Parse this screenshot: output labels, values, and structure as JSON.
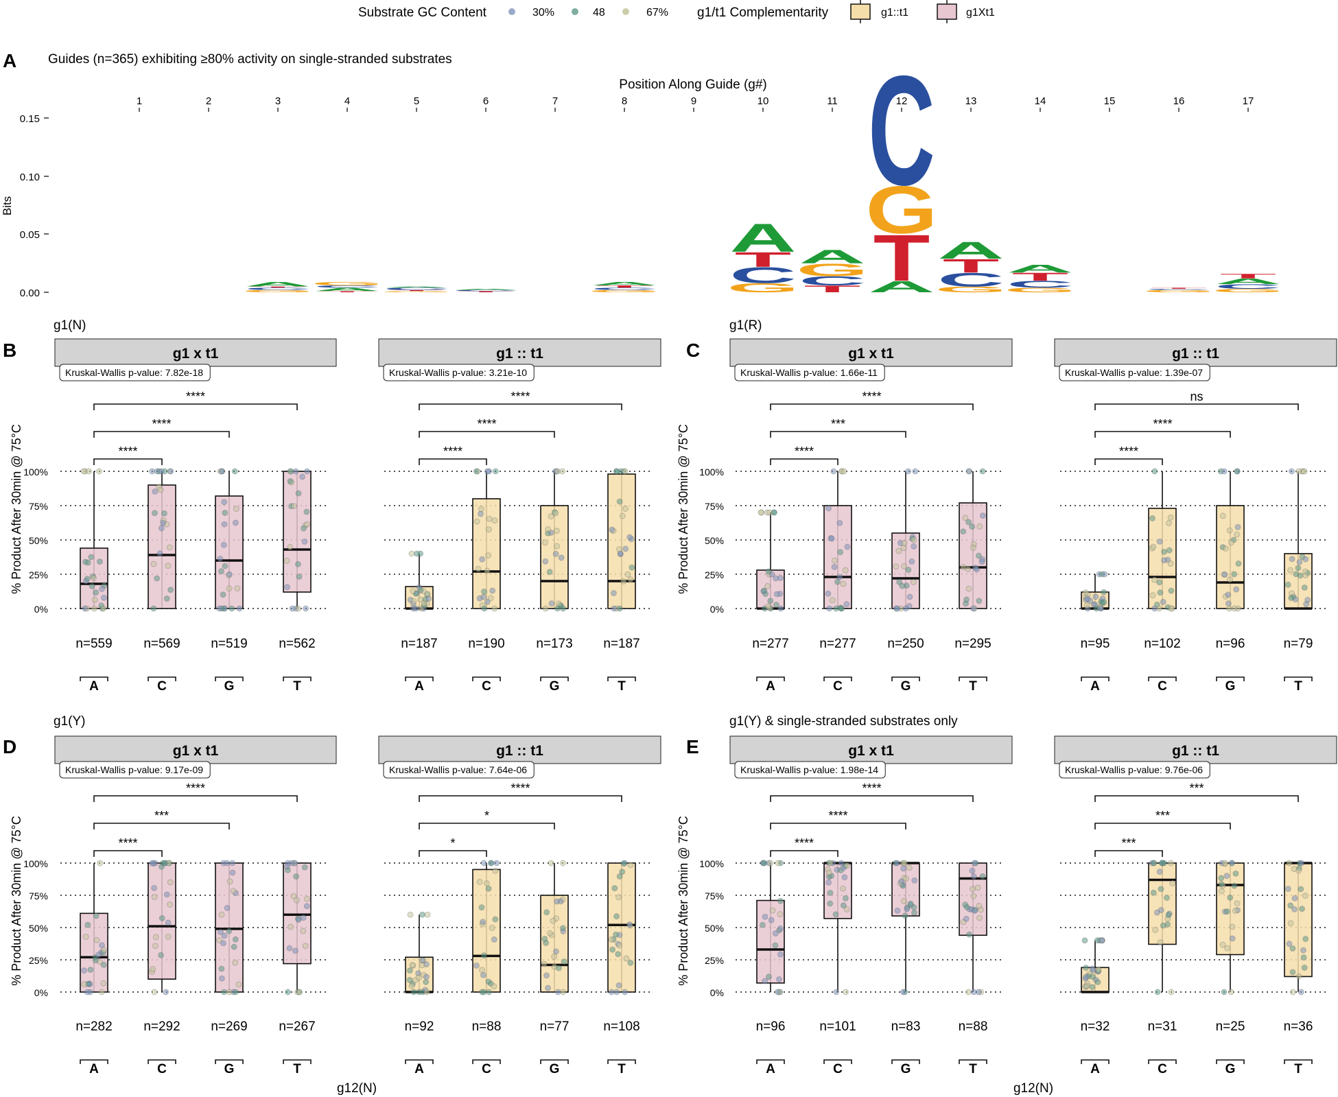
{
  "legend": {
    "gc_title": "Substrate GC Content",
    "gc_items": [
      {
        "label": "30%",
        "color": "#7f95bb"
      },
      {
        "label": "48",
        "color": "#5f9a8a"
      },
      {
        "label": "67%",
        "color": "#c7c79e"
      }
    ],
    "comp_title": "g1/t1 Complementarity",
    "comp_items": [
      {
        "label": "g1::t1",
        "fill": "#f6deab"
      },
      {
        "label": "g1Xt1",
        "fill": "#e8c7d0"
      }
    ]
  },
  "colors": {
    "A": "#1e9a37",
    "C": "#2a4f9e",
    "G": "#f2a31b",
    "T": "#d0202e",
    "mismatch_fill": "#e8c7d0",
    "match_fill": "#f6deab",
    "strip_fill": "#d3d3d3",
    "gc_low": "#7f95bb",
    "gc_mid": "#5f9a8a",
    "gc_high": "#c7c79e"
  },
  "panel_A": {
    "label": "A",
    "title": "Guides (n=365) exhibiting ≥80% activity on single-stranded substrates",
    "x_title": "Position Along Guide (g#)",
    "y_title": "Bits",
    "y_ticks": [
      "0.15",
      "0.10",
      "0.05",
      "0.00"
    ]
  },
  "subplot_labels": {
    "B": "B",
    "C": "C",
    "D": "D",
    "E": "E",
    "g1N": "g1(N)",
    "g1R": "g1(R)",
    "g1Y": "g1(Y)",
    "g1Y_ss": "g1(Y) & single-stranded substrates only"
  },
  "box_y_title": "% Product After 30min @ 75°C",
  "box_y_ticks": [
    "100%",
    "75%",
    "50%",
    "25%",
    "0%"
  ],
  "box_x_title": "g12(N)",
  "chart_data": [
    {
      "type": "sequence-logo",
      "panel": "A",
      "x_label": "Position Along Guide (g#)",
      "y_label": "Bits",
      "ylim": [
        0,
        0.15
      ],
      "positions": [
        1,
        2,
        3,
        4,
        5,
        6,
        7,
        8,
        9,
        10,
        11,
        12,
        13,
        14,
        15,
        16,
        17
      ],
      "stacks": [
        {
          "pos": 3,
          "letters": [
            [
              "G",
              0.002
            ],
            [
              "C",
              0.002
            ],
            [
              "T",
              0.001
            ],
            [
              "A",
              0.004
            ]
          ]
        },
        {
          "pos": 4,
          "letters": [
            [
              "T",
              0.001
            ],
            [
              "A",
              0.003
            ],
            [
              "C",
              0.002
            ],
            [
              "G",
              0.003
            ]
          ]
        },
        {
          "pos": 5,
          "letters": [
            [
              "G",
              0.001
            ],
            [
              "T",
              0.001
            ],
            [
              "C",
              0.002
            ],
            [
              "A",
              0.001
            ]
          ]
        },
        {
          "pos": 6,
          "letters": [
            [
              "T",
              0.001
            ],
            [
              "C",
              0.001
            ],
            [
              "A",
              0.001
            ]
          ]
        },
        {
          "pos": 8,
          "letters": [
            [
              "G",
              0.002
            ],
            [
              "C",
              0.002
            ],
            [
              "T",
              0.002
            ],
            [
              "A",
              0.003
            ]
          ]
        },
        {
          "pos": 10,
          "letters": [
            [
              "G",
              0.008
            ],
            [
              "C",
              0.014
            ],
            [
              "T",
              0.013
            ],
            [
              "A",
              0.025
            ]
          ]
        },
        {
          "pos": 11,
          "letters": [
            [
              "T",
              0.006
            ],
            [
              "C",
              0.008
            ],
            [
              "G",
              0.011
            ],
            [
              "A",
              0.012
            ]
          ]
        },
        {
          "pos": 12,
          "letters": [
            [
              "A",
              0.01
            ],
            [
              "T",
              0.041
            ],
            [
              "G",
              0.042
            ],
            [
              "C",
              0.097
            ]
          ]
        },
        {
          "pos": 13,
          "letters": [
            [
              "G",
              0.005
            ],
            [
              "C",
              0.012
            ],
            [
              "T",
              0.012
            ],
            [
              "A",
              0.015
            ]
          ]
        },
        {
          "pos": 14,
          "letters": [
            [
              "G",
              0.004
            ],
            [
              "C",
              0.006
            ],
            [
              "T",
              0.007
            ],
            [
              "A",
              0.007
            ]
          ]
        },
        {
          "pos": 16,
          "letters": [
            [
              "G",
              0.002
            ],
            [
              "C",
              0.001
            ],
            [
              "T",
              0.001
            ]
          ]
        },
        {
          "pos": 17,
          "letters": [
            [
              "G",
              0.003
            ],
            [
              "C",
              0.004
            ],
            [
              "A",
              0.005
            ],
            [
              "T",
              0.004
            ]
          ]
        }
      ]
    },
    {
      "type": "box",
      "subplot": "g1(N)",
      "facet": "g1 x t1",
      "complementarity": "g1Xt1",
      "categories": [
        "A",
        "C",
        "G",
        "T"
      ],
      "kruskal_wallis": "Kruskal-Wallis p-value: 7.82e-18",
      "counts": [
        "n=559",
        "n=569",
        "n=519",
        "n=562"
      ],
      "q1": [
        0,
        0,
        0,
        12
      ],
      "median": [
        18,
        39,
        35,
        43
      ],
      "q3": [
        44,
        90,
        82,
        100
      ],
      "whisker_low": [
        0,
        0,
        0,
        0
      ],
      "whisker_high": [
        100,
        100,
        100,
        100
      ],
      "brackets": [
        {
          "from": "A",
          "to": "C",
          "label": "****"
        },
        {
          "from": "A",
          "to": "G",
          "label": "****"
        },
        {
          "from": "A",
          "to": "T",
          "label": "****"
        }
      ]
    },
    {
      "type": "box",
      "subplot": "g1(N)",
      "facet": "g1 :: t1",
      "complementarity": "g1::t1",
      "categories": [
        "A",
        "C",
        "G",
        "T"
      ],
      "kruskal_wallis": "Kruskal-Wallis p-value: 3.21e-10",
      "counts": [
        "n=187",
        "n=190",
        "n=173",
        "n=187"
      ],
      "q1": [
        0,
        0,
        0,
        0
      ],
      "median": [
        0,
        27,
        20,
        20
      ],
      "q3": [
        16,
        80,
        75,
        98
      ],
      "whisker_low": [
        0,
        0,
        0,
        0
      ],
      "whisker_high": [
        40,
        100,
        100,
        100
      ],
      "brackets": [
        {
          "from": "A",
          "to": "C",
          "label": "****"
        },
        {
          "from": "A",
          "to": "G",
          "label": "****"
        },
        {
          "from": "A",
          "to": "T",
          "label": "****"
        }
      ]
    },
    {
      "type": "box",
      "subplot": "g1(R)",
      "facet": "g1 x t1",
      "complementarity": "g1Xt1",
      "categories": [
        "A",
        "C",
        "G",
        "T"
      ],
      "kruskal_wallis": "Kruskal-Wallis p-value: 1.66e-11",
      "counts": [
        "n=277",
        "n=277",
        "n=250",
        "n=295"
      ],
      "q1": [
        0,
        0,
        0,
        0
      ],
      "median": [
        0,
        23,
        22,
        30
      ],
      "q3": [
        28,
        75,
        55,
        77
      ],
      "whisker_low": [
        0,
        0,
        0,
        0
      ],
      "whisker_high": [
        70,
        100,
        100,
        100
      ],
      "brackets": [
        {
          "from": "A",
          "to": "C",
          "label": "****"
        },
        {
          "from": "A",
          "to": "G",
          "label": "***"
        },
        {
          "from": "A",
          "to": "T",
          "label": "****"
        }
      ]
    },
    {
      "type": "box",
      "subplot": "g1(R)",
      "facet": "g1 :: t1",
      "complementarity": "g1::t1",
      "categories": [
        "A",
        "C",
        "G",
        "T"
      ],
      "kruskal_wallis": "Kruskal-Wallis p-value: 1.39e-07",
      "counts": [
        "n=95",
        "n=102",
        "n=96",
        "n=79"
      ],
      "q1": [
        0,
        0,
        0,
        0
      ],
      "median": [
        0,
        23,
        19,
        0
      ],
      "q3": [
        12,
        73,
        75,
        40
      ],
      "whisker_low": [
        0,
        0,
        0,
        0
      ],
      "whisker_high": [
        25,
        100,
        100,
        100
      ],
      "brackets": [
        {
          "from": "A",
          "to": "C",
          "label": "****"
        },
        {
          "from": "A",
          "to": "G",
          "label": "****"
        },
        {
          "from": "A",
          "to": "T",
          "label": "ns"
        }
      ]
    },
    {
      "type": "box",
      "subplot": "g1(Y)",
      "facet": "g1 x t1",
      "complementarity": "g1Xt1",
      "categories": [
        "A",
        "C",
        "G",
        "T"
      ],
      "kruskal_wallis": "Kruskal-Wallis p-value: 9.17e-09",
      "counts": [
        "n=282",
        "n=292",
        "n=269",
        "n=267"
      ],
      "q1": [
        0,
        10,
        0,
        22
      ],
      "median": [
        27,
        51,
        49,
        60
      ],
      "q3": [
        61,
        100,
        100,
        100
      ],
      "whisker_low": [
        0,
        0,
        0,
        0
      ],
      "whisker_high": [
        100,
        100,
        100,
        100
      ],
      "brackets": [
        {
          "from": "A",
          "to": "C",
          "label": "****"
        },
        {
          "from": "A",
          "to": "G",
          "label": "***"
        },
        {
          "from": "A",
          "to": "T",
          "label": "****"
        }
      ]
    },
    {
      "type": "box",
      "subplot": "g1(Y)",
      "facet": "g1 :: t1",
      "complementarity": "g1::t1",
      "categories": [
        "A",
        "C",
        "G",
        "T"
      ],
      "kruskal_wallis": "Kruskal-Wallis p-value: 7.64e-06",
      "counts": [
        "n=92",
        "n=88",
        "n=77",
        "n=108"
      ],
      "q1": [
        0,
        0,
        0,
        0
      ],
      "median": [
        0,
        28,
        21,
        52
      ],
      "q3": [
        27,
        95,
        75,
        100
      ],
      "whisker_low": [
        0,
        0,
        0,
        0
      ],
      "whisker_high": [
        60,
        100,
        100,
        100
      ],
      "brackets": [
        {
          "from": "A",
          "to": "C",
          "label": "*"
        },
        {
          "from": "A",
          "to": "G",
          "label": "*"
        },
        {
          "from": "A",
          "to": "T",
          "label": "****"
        }
      ]
    },
    {
      "type": "box",
      "subplot": "g1(Y) & single-stranded substrates only",
      "facet": "g1 x t1",
      "complementarity": "g1Xt1",
      "categories": [
        "A",
        "C",
        "G",
        "T"
      ],
      "kruskal_wallis": "Kruskal-Wallis p-value: 1.98e-14",
      "counts": [
        "n=96",
        "n=101",
        "n=83",
        "n=88"
      ],
      "q1": [
        7,
        57,
        59,
        44
      ],
      "median": [
        33,
        100,
        100,
        88
      ],
      "q3": [
        71,
        100,
        100,
        100
      ],
      "whisker_low": [
        0,
        0,
        0,
        0
      ],
      "whisker_high": [
        100,
        100,
        100,
        100
      ],
      "brackets": [
        {
          "from": "A",
          "to": "C",
          "label": "****"
        },
        {
          "from": "A",
          "to": "G",
          "label": "****"
        },
        {
          "from": "A",
          "to": "T",
          "label": "****"
        }
      ]
    },
    {
      "type": "box",
      "subplot": "g1(Y) & single-stranded substrates only",
      "facet": "g1 :: t1",
      "complementarity": "g1::t1",
      "categories": [
        "A",
        "C",
        "G",
        "T"
      ],
      "kruskal_wallis": "Kruskal-Wallis p-value: 9.76e-06",
      "counts": [
        "n=32",
        "n=31",
        "n=25",
        "n=36"
      ],
      "q1": [
        0,
        37,
        29,
        12
      ],
      "median": [
        0,
        87,
        83,
        100
      ],
      "q3": [
        19,
        100,
        100,
        100
      ],
      "whisker_low": [
        0,
        0,
        0,
        0
      ],
      "whisker_high": [
        40,
        100,
        100,
        100
      ],
      "brackets": [
        {
          "from": "A",
          "to": "C",
          "label": "***"
        },
        {
          "from": "A",
          "to": "G",
          "label": "***"
        },
        {
          "from": "A",
          "to": "T",
          "label": "***"
        }
      ]
    }
  ]
}
